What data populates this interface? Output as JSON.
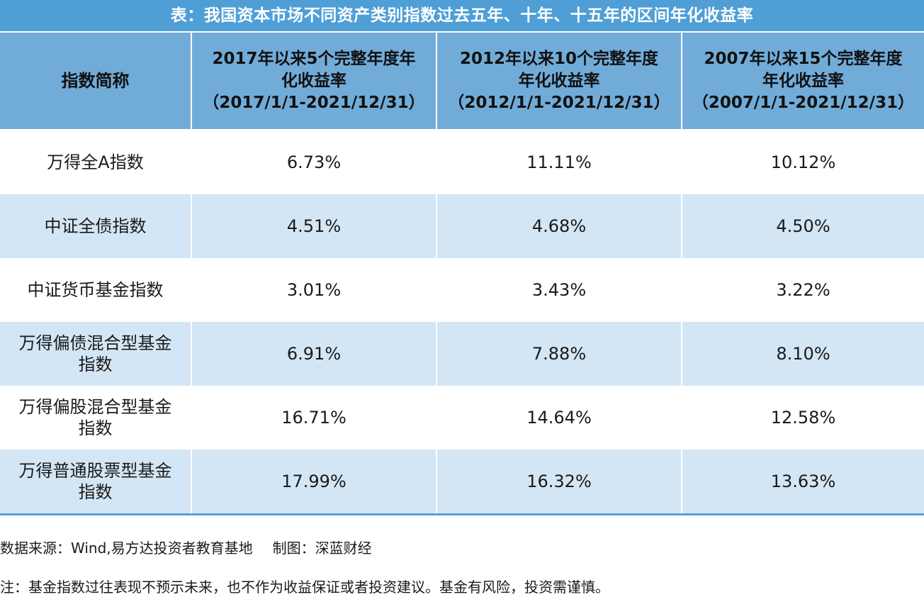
{
  "title": "表：我国资本市场不同资产类别指数过去五年、十年、十五年的区间年化收益率",
  "header": {
    "name": "指数简称",
    "col1": [
      "2017年以来5个完整年度年",
      "化收益率",
      "（2017/1/1-2021/12/31）"
    ],
    "col2": [
      "2012年以来10个完整年度",
      "年化收益率",
      "（2012/1/1-2021/12/31）"
    ],
    "col3": [
      "2007年以来15个完整年度",
      "年化收益率",
      "（2007/1/1-2021/12/31）"
    ]
  },
  "rows": [
    {
      "name": [
        "万得全A指数"
      ],
      "v5": "6.73%",
      "v10": "11.11%",
      "v15": "10.12%"
    },
    {
      "name": [
        "中证全债指数"
      ],
      "v5": "4.51%",
      "v10": "4.68%",
      "v15": "4.50%"
    },
    {
      "name": [
        "中证货币基金指数"
      ],
      "v5": "3.01%",
      "v10": "3.43%",
      "v15": "3.22%"
    },
    {
      "name": [
        "万得偏债混合型基金",
        "指数"
      ],
      "v5": "6.91%",
      "v10": "7.88%",
      "v15": "8.10%"
    },
    {
      "name": [
        "万得偏股混合型基金",
        "指数"
      ],
      "v5": "16.71%",
      "v10": "14.64%",
      "v15": "12.58%"
    },
    {
      "name": [
        "万得普通股票型基金",
        "指数"
      ],
      "v5": "17.99%",
      "v10": "16.32%",
      "v15": "13.63%"
    }
  ],
  "footer": {
    "source": "数据来源：Wind,易方达投资者教育基地",
    "made_by": "制图：深蓝财经",
    "note": "注：基金指数过往表现不预示未来，也不作为收益保证或者投资建议。基金有风险，投资需谨慎。"
  }
}
